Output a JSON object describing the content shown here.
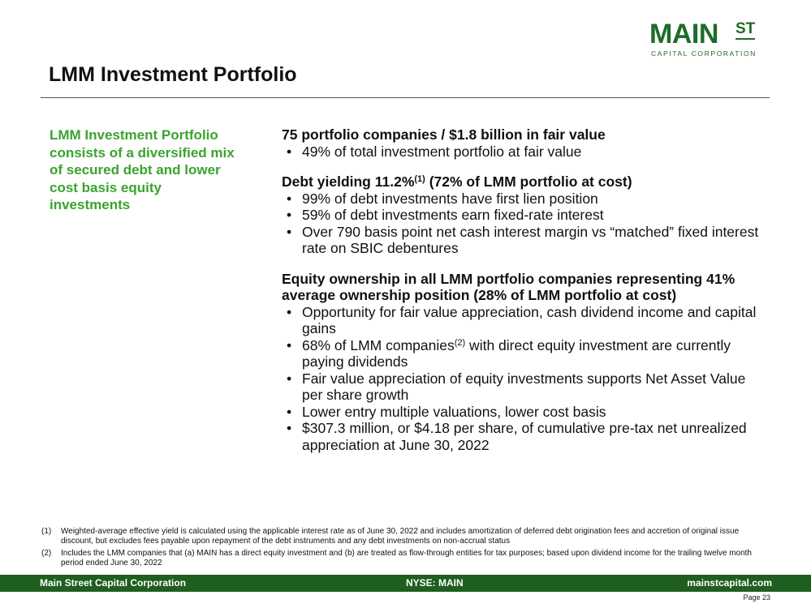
{
  "logo": {
    "main": "MAIN",
    "st": "ST",
    "sub": "CAPITAL CORPORATION"
  },
  "page": {
    "title": "LMM Investment Portfolio",
    "number": "Page 23"
  },
  "callout": "LMM Investment Portfolio consists of a diversified mix of secured debt and lower cost basis equity investments",
  "sections": [
    {
      "heading": "75 portfolio companies / $1.8 billion in fair value",
      "bullets": [
        "49% of total investment portfolio at fair value"
      ]
    },
    {
      "heading_pre": "Debt yielding 11.2%",
      "heading_sup": "(1)",
      "heading_post": " (72% of LMM portfolio at cost)",
      "bullets": [
        "99% of debt investments have first lien position",
        "59% of debt investments earn fixed-rate interest",
        "Over 790 basis point net cash interest margin vs “matched” fixed interest rate on SBIC debentures"
      ]
    },
    {
      "heading": "Equity ownership in all LMM portfolio companies representing 41% average ownership position (28% of LMM portfolio at cost)",
      "bullets": [
        "Opportunity for fair value appreciation, cash dividend income and capital gains",
        {
          "pre": "68% of LMM companies",
          "sup": "(2)",
          "post": " with direct equity investment are currently paying dividends"
        },
        "Fair value appreciation of equity investments supports Net Asset Value per share growth",
        "Lower entry multiple valuations, lower cost basis",
        "$307.3 million, or $4.18 per share, of cumulative pre-tax net unrealized appreciation at June 30, 2022"
      ]
    }
  ],
  "footnotes": [
    {
      "num": "(1)",
      "text": "Weighted-average effective yield is calculated using the applicable interest rate as of June 30, 2022 and includes amortization of deferred debt origination fees and accretion of original issue discount, but excludes fees payable upon repayment of the debt instruments and any debt investments on non-accrual status"
    },
    {
      "num": "(2)",
      "text": "Includes the LMM companies that (a) MAIN has a direct equity investment and (b) are treated as flow-through entities for tax purposes; based upon dividend income for the trailing twelve month period ended June 30, 2022"
    }
  ],
  "footer": {
    "left": "Main Street Capital Corporation",
    "center": "NYSE: MAIN",
    "right": "mainstcapital.com"
  },
  "colors": {
    "brand_green": "#1e6b2a",
    "accent_green": "#3aa32e",
    "footer_bar": "#1e5e1e"
  }
}
